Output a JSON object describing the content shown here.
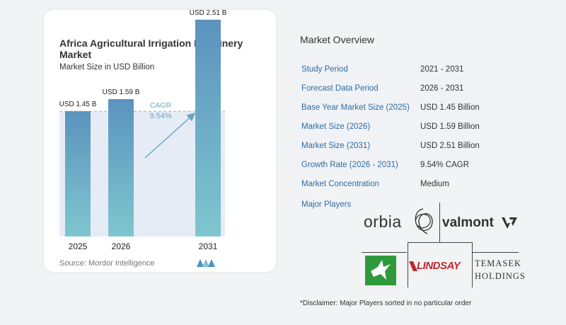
{
  "chart": {
    "title": "Africa Agricultural Irrigation Machinery Market",
    "subtitle": "Market Size in USD Billion",
    "source": "Source:  Mordor Intelligence",
    "cagr_label": "CAGR",
    "cagr_value": "9.54%"
  },
  "chart_data": {
    "type": "bar",
    "title": "Africa Agricultural Irrigation Machinery Market",
    "subtitle": "Market Size in USD Billion",
    "categories": [
      "2025",
      "2026",
      "2031"
    ],
    "values": [
      1.45,
      1.59,
      2.51
    ],
    "data_labels": [
      "USD 1.45 B",
      "USD 1.59 B",
      "USD 2.51 B"
    ],
    "cagr": "9.54%",
    "reference_line": 1.45,
    "colors": {
      "bar_top": "#5b93be",
      "bar_bottom": "#7fc6cf",
      "band": "#e6ecf5",
      "arrow": "#6aa4c8"
    }
  },
  "overview": {
    "title": "Market Overview",
    "rows": [
      {
        "label": "Study Period",
        "value": "2021 - 2031"
      },
      {
        "label": "Forecast Data Period",
        "value": "2026 - 2031"
      },
      {
        "label": "Base Year Market Size (2025)",
        "value": "USD 1.45 Billion"
      },
      {
        "label": "Market Size (2026)",
        "value": "USD 1.59 Billion"
      },
      {
        "label": "Market Size (2031)",
        "value": "USD 2.51 Billion"
      },
      {
        "label": "Growth Rate (2026 - 2031)",
        "value": "9.54% CAGR"
      },
      {
        "label": "Market Concentration",
        "value": "Medium"
      }
    ],
    "players_title": "Major Players",
    "players": {
      "orbia": "orbia",
      "valmont": "valmont",
      "lindsay": "LINDSAY",
      "temasek_1": "TEMASEK",
      "temasek_2": "HOLDINGS"
    },
    "disclaimer": "*Disclaimer: Major Players sorted in no particular order"
  }
}
